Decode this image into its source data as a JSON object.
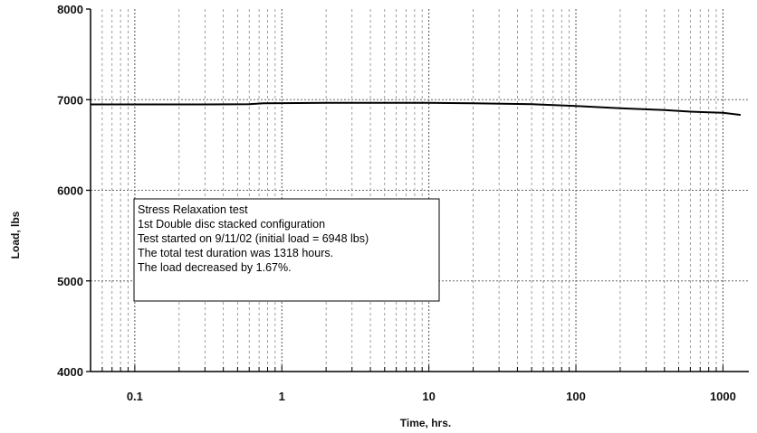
{
  "chart_data": {
    "type": "line",
    "xscale": "log",
    "xlabel": "Time, hrs.",
    "ylabel": "Load, lbs",
    "xlim": [
      0.05,
      1500
    ],
    "ylim": [
      4000,
      8000
    ],
    "grid": true,
    "x_ticks": [
      0.1,
      1,
      10,
      100,
      1000
    ],
    "x_tick_labels": [
      "0.1",
      "1",
      "10",
      "100",
      "1000"
    ],
    "y_ticks": [
      4000,
      5000,
      6000,
      7000,
      8000
    ],
    "y_tick_labels": [
      "4000",
      "5000",
      "6000",
      "7000",
      "8000"
    ],
    "series": [
      {
        "color": "#000000",
        "x": [
          0.05,
          0.1,
          0.3,
          0.6,
          0.75,
          1,
          2,
          5,
          10,
          20,
          50,
          100,
          200,
          400,
          600,
          800,
          1000,
          1318
        ],
        "y": [
          6948,
          6948,
          6948,
          6950,
          6960,
          6962,
          6965,
          6966,
          6966,
          6960,
          6950,
          6930,
          6905,
          6885,
          6868,
          6860,
          6855,
          6832
        ]
      }
    ],
    "annotation": {
      "lines": [
        "Stress Relaxation test",
        "1st Double disc stacked configuration",
        "Test started on 9/11/02 (initial load = 6948 lbs)",
        "The total test duration was 1318 hours.",
        "The load decreased by 1.67%."
      ]
    }
  }
}
